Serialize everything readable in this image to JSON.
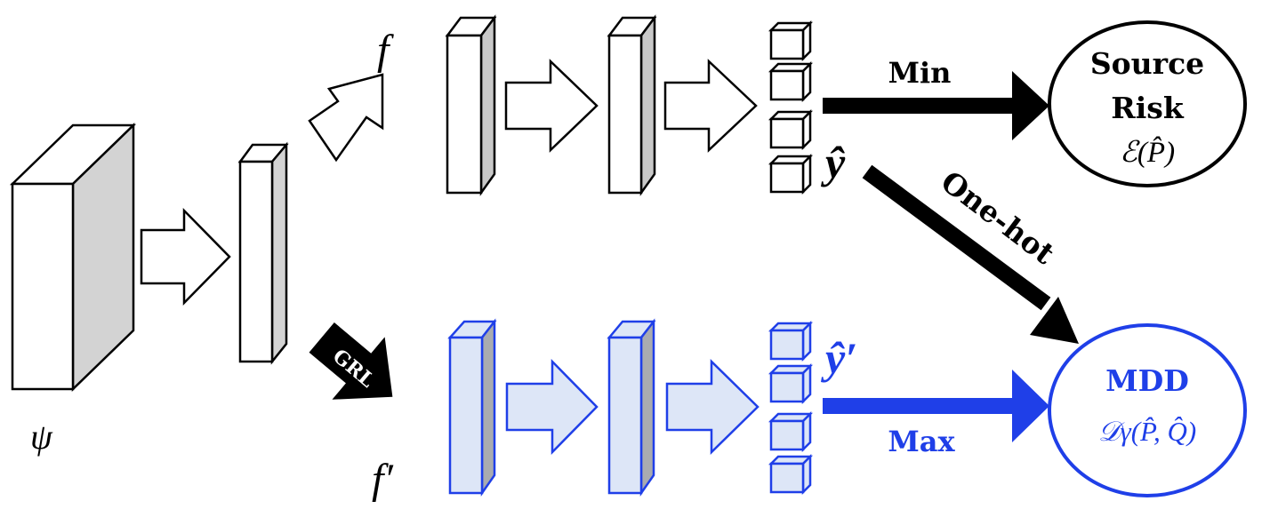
{
  "colors": {
    "ink": "#000000",
    "box_side": "#d3d3d3",
    "blue": "#1f3fe8",
    "blue_light": "#dde6f7",
    "blue_side": "#a9abb0",
    "white": "#ffffff"
  },
  "labels": {
    "psi": "ψ",
    "f": "f",
    "f_prime": "f′",
    "y_hat": "ŷ",
    "y_hat_prime": "ŷ′",
    "grl": "GRL",
    "min": "Min",
    "max": "Max",
    "one_hot": "One-hot"
  },
  "source_risk": {
    "line1": "Source",
    "line2": "Risk",
    "formula": "ℰ(P̂)"
  },
  "mdd": {
    "title": "MDD",
    "formula": "𝒟γ(P̂, Q̂)"
  },
  "icons": {
    "flow_arrow": "hollow-block-arrow-icon",
    "grl_arrow": "filled-block-arrow-icon",
    "feature_block": "cuboid-icon"
  }
}
